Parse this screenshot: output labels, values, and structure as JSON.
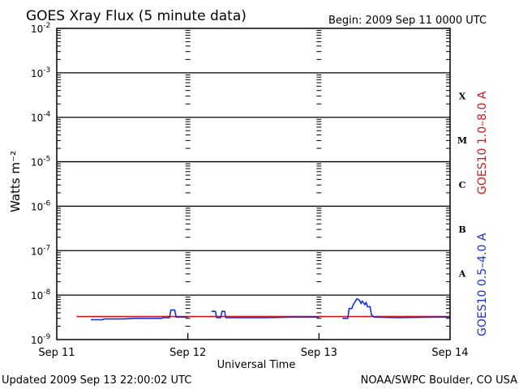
{
  "header": {
    "title": "GOES Xray Flux (5 minute data)",
    "begin": "Begin:  2009 Sep 11 0000 UTC"
  },
  "footer": {
    "updated": "Updated 2009 Sep 13 22:00:02 UTC",
    "credit": "NOAA/SWPC Boulder, CO USA"
  },
  "colors": {
    "long_channel": "#d01818",
    "short_channel": "#1830d8",
    "axes": "#000000"
  },
  "chart_data": {
    "type": "line",
    "title": "GOES Xray Flux (5 minute data)",
    "xlabel": "Universal Time",
    "ylabel": "Watts m⁻²",
    "y_scale": "log",
    "ylim": [
      1e-09,
      0.01
    ],
    "xlim_days": [
      "2009-09-11T00:00",
      "2009-09-14T00:00"
    ],
    "x_ticks": [
      "Sep 11",
      "Sep 12",
      "Sep 13",
      "Sep 14"
    ],
    "y_ticks": [
      {
        "value": 0.01,
        "base": "10",
        "exp": "-2"
      },
      {
        "value": 0.001,
        "base": "10",
        "exp": "-3"
      },
      {
        "value": 0.0001,
        "base": "10",
        "exp": "-4"
      },
      {
        "value": 1e-05,
        "base": "10",
        "exp": "-5"
      },
      {
        "value": 1e-06,
        "base": "10",
        "exp": "-6"
      },
      {
        "value": 1e-07,
        "base": "10",
        "exp": "-7"
      },
      {
        "value": 1e-08,
        "base": "10",
        "exp": "-8"
      },
      {
        "value": 1e-09,
        "base": "10",
        "exp": "-9"
      }
    ],
    "flare_classes": [
      {
        "label": "X",
        "low": 0.0001,
        "high": 0.001
      },
      {
        "label": "M",
        "low": 1e-05,
        "high": 0.0001
      },
      {
        "label": "C",
        "low": 1e-06,
        "high": 1e-05
      },
      {
        "label": "B",
        "low": 1e-07,
        "high": 1e-06
      },
      {
        "label": "A",
        "low": 1e-08,
        "high": 1e-07
      }
    ],
    "grid": true,
    "series": [
      {
        "name": "GOES10 1.0–8.0 A",
        "color": "#d01818",
        "segments": [
          [
            [
              0.15,
              3.3e-09
            ],
            [
              3.0,
              3.3e-09
            ]
          ]
        ]
      },
      {
        "name": "GOES10 0.5–4.0 A",
        "color": "#1830d8",
        "segments": [
          [
            [
              0.26,
              2.8e-09
            ],
            [
              0.35,
              2.8e-09
            ],
            [
              0.36,
              2.9e-09
            ],
            [
              0.5,
              2.9e-09
            ],
            [
              0.6,
              3e-09
            ],
            [
              0.8,
              3e-09
            ],
            [
              0.81,
              3.1e-09
            ],
            [
              0.86,
              3.1e-09
            ],
            [
              0.87,
              4.6e-09
            ],
            [
              0.9,
              4.6e-09
            ],
            [
              0.91,
              3.2e-09
            ],
            [
              1.0,
              3.2e-09
            ]
          ],
          [
            [
              1.18,
              4.3e-09
            ],
            [
              1.21,
              4.3e-09
            ],
            [
              1.22,
              3.1e-09
            ],
            [
              1.25,
              3.1e-09
            ],
            [
              1.26,
              4.3e-09
            ],
            [
              1.28,
              4.3e-09
            ],
            [
              1.29,
              3.1e-09
            ],
            [
              1.6,
              3.1e-09
            ],
            [
              1.8,
              3.2e-09
            ],
            [
              2.0,
              3.2e-09
            ]
          ],
          [
            [
              2.18,
              3e-09
            ],
            [
              2.22,
              3e-09
            ],
            [
              2.23,
              5e-09
            ],
            [
              2.25,
              5e-09
            ],
            [
              2.26,
              6e-09
            ],
            [
              2.28,
              7.5e-09
            ],
            [
              2.29,
              8.3e-09
            ],
            [
              2.31,
              7.6e-09
            ],
            [
              2.32,
              6.5e-09
            ],
            [
              2.33,
              7.3e-09
            ],
            [
              2.35,
              6.1e-09
            ],
            [
              2.36,
              6.8e-09
            ],
            [
              2.37,
              5.5e-09
            ],
            [
              2.39,
              5.5e-09
            ],
            [
              2.4,
              3.6e-09
            ],
            [
              2.42,
              3.2e-09
            ],
            [
              2.6,
              3.1e-09
            ],
            [
              2.9,
              3.2e-09
            ],
            [
              3.0,
              3.2e-09
            ]
          ]
        ]
      }
    ]
  }
}
